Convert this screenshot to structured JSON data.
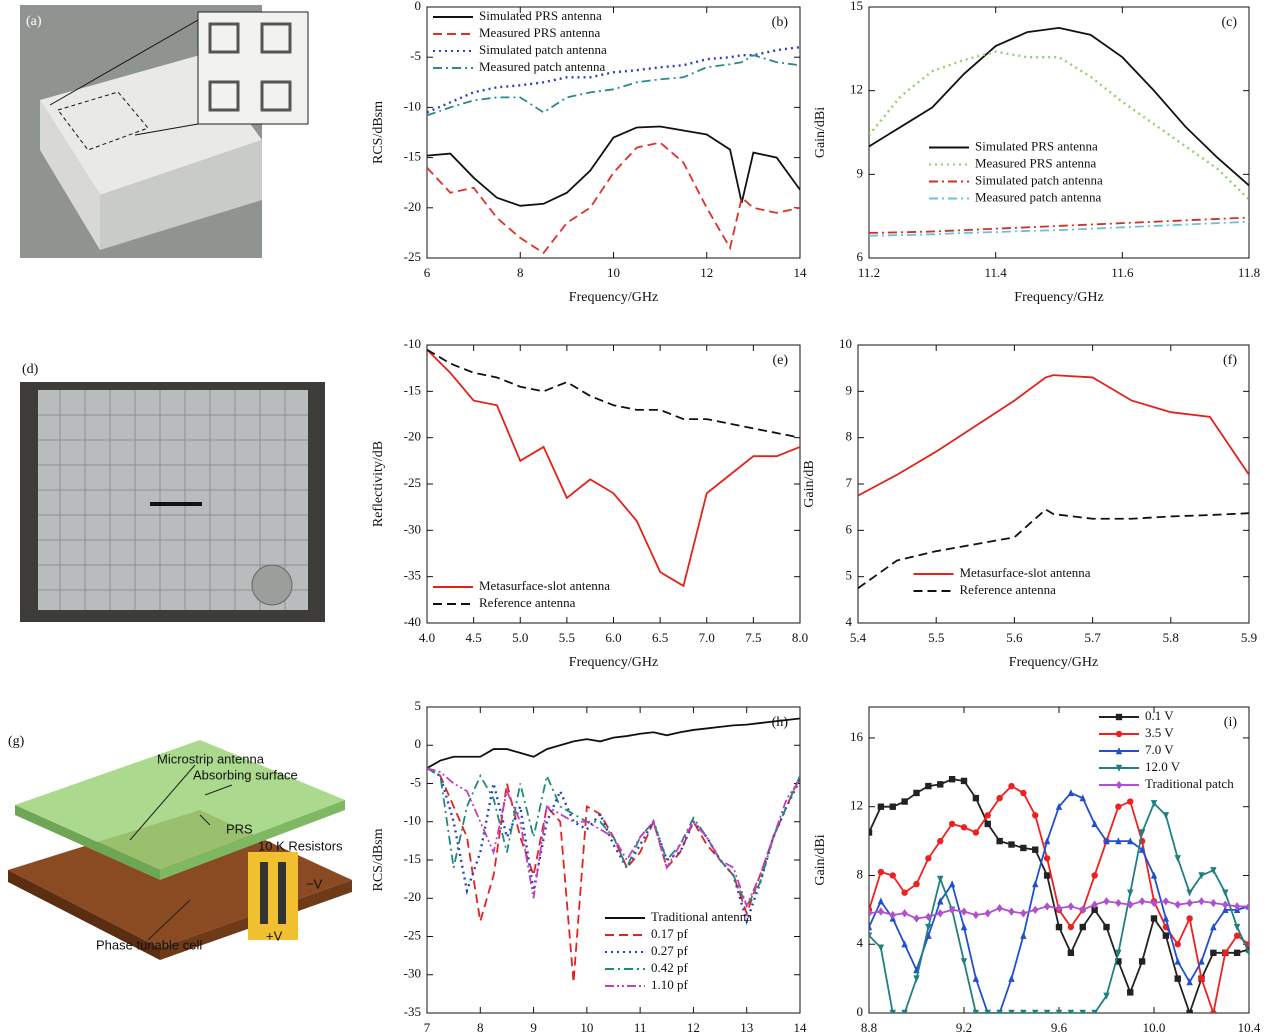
{
  "photos": [
    {
      "label": "(a)"
    },
    {
      "label": "(d)"
    }
  ],
  "diagram": {
    "label": "(g)",
    "annotations": [
      "Microstrip antenna",
      "Absorbing surface",
      "PRS",
      "10 K Resistors",
      "−V",
      "+V",
      "Phase tunable cell"
    ]
  },
  "chart_data": [
    {
      "type": "line",
      "panel_label": "(b)",
      "x_label": "Frequency/GHz",
      "y_label": "RCS/dBsm",
      "xlim": [
        6,
        14
      ],
      "xticks": [
        6,
        8,
        10,
        12,
        14
      ],
      "ylim": [
        -25,
        0
      ],
      "yticks": [
        -25,
        -20,
        -15,
        -10,
        -5,
        0
      ],
      "legend": "upper left",
      "x": [
        6,
        6.5,
        7,
        7.5,
        8,
        8.5,
        9,
        9.5,
        10,
        10.5,
        11,
        11.5,
        12,
        12.5,
        12.75,
        13,
        13.5,
        14
      ],
      "series": [
        {
          "name": "Simulated PRS antenna",
          "color": "#111111",
          "dash": "solid",
          "values": [
            -14.8,
            -14.6,
            -17,
            -19,
            -19.8,
            -19.6,
            -18.5,
            -16.3,
            -13,
            -12,
            -11.9,
            -12.3,
            -12.7,
            -14.2,
            -19.5,
            -14.5,
            -15,
            -18.2
          ]
        },
        {
          "name": "Measured PRS antenna",
          "color": "#e0302a",
          "dash": "dashed",
          "values": [
            -16,
            -18.5,
            -18,
            -21,
            -23,
            -24.5,
            -21.5,
            -20,
            -16.5,
            -14,
            -13.5,
            -15.5,
            -20,
            -24,
            -19,
            -20,
            -20.5,
            -20
          ]
        },
        {
          "name": "Simulated patch antenna",
          "color": "#2f3fbf",
          "dash": "dotted",
          "values": [
            -10.5,
            -9.5,
            -8.5,
            -8,
            -7.8,
            -7.5,
            -7,
            -7,
            -6.5,
            -6.3,
            -6,
            -5.8,
            -5.2,
            -5,
            -4.8,
            -4.8,
            -4.3,
            -4
          ]
        },
        {
          "name": "Measured patch antenna",
          "color": "#2a8a8a",
          "dash": "dashdot",
          "values": [
            -10.8,
            -10,
            -9.3,
            -9,
            -9,
            -10.5,
            -9,
            -8.5,
            -8.2,
            -7.5,
            -7.2,
            -7,
            -6,
            -5.7,
            -5.5,
            -4.8,
            -5.5,
            -5.8
          ]
        }
      ]
    },
    {
      "type": "line",
      "panel_label": "(c)",
      "x_label": "Frequency/GHz",
      "y_label": "Gain/dBi",
      "xlim": [
        11.2,
        11.8
      ],
      "xticks": [
        11.2,
        11.4,
        11.6,
        11.8
      ],
      "ylim": [
        6,
        15
      ],
      "yticks": [
        6,
        9,
        12,
        15
      ],
      "legend": "center",
      "x": [
        11.2,
        11.25,
        11.3,
        11.35,
        11.4,
        11.45,
        11.5,
        11.55,
        11.6,
        11.65,
        11.7,
        11.75,
        11.8
      ],
      "series": [
        {
          "name": "Simulated PRS antenna",
          "color": "#111111",
          "dash": "solid",
          "values": [
            10,
            10.7,
            11.4,
            12.6,
            13.6,
            14.1,
            14.25,
            14,
            13.2,
            12,
            10.7,
            9.6,
            8.6
          ]
        },
        {
          "name": "Measured PRS antenna",
          "color": "#8fd06a",
          "dash": "dotted",
          "values": [
            10.4,
            11.8,
            12.7,
            13.1,
            13.4,
            13.2,
            13.2,
            12.5,
            11.6,
            10.8,
            10,
            9.2,
            8.1
          ]
        },
        {
          "name": "Simulated patch antenna",
          "color": "#d03020",
          "dash": "dashdot",
          "values": [
            6.9,
            6.92,
            6.95,
            7,
            7.05,
            7.1,
            7.15,
            7.2,
            7.25,
            7.3,
            7.35,
            7.4,
            7.45
          ]
        },
        {
          "name": "Measured patch antenna",
          "color": "#6ac0d8",
          "dash": "dashdot",
          "values": [
            6.8,
            6.82,
            6.85,
            6.9,
            6.93,
            6.97,
            7,
            7.05,
            7.1,
            7.15,
            7.2,
            7.25,
            7.3
          ]
        }
      ]
    },
    {
      "type": "line",
      "panel_label": "(e)",
      "x_label": "Frequency/GHz",
      "y_label": "Reflectivity/dB",
      "xlim": [
        4,
        8
      ],
      "xticks": [
        {
          "value": 4,
          "label": "4.0"
        },
        4.5,
        {
          "value": 5,
          "label": "5.0"
        },
        5.5,
        {
          "value": 6,
          "label": "6.0"
        },
        6.5,
        {
          "value": 7,
          "label": "7.0"
        },
        7.5,
        {
          "value": 8,
          "label": "8.0"
        }
      ],
      "ylim": [
        -40,
        -10
      ],
      "yticks": [
        -40,
        -35,
        -30,
        -25,
        -20,
        -15,
        -10
      ],
      "legend": "lower left",
      "x": [
        4,
        4.25,
        4.5,
        4.75,
        5,
        5.25,
        5.5,
        5.75,
        6,
        6.25,
        6.5,
        6.75,
        7,
        7.25,
        7.5,
        7.75,
        8
      ],
      "series": [
        {
          "name": "Metasurface-slot antenna",
          "color": "#e3221b",
          "dash": "solid",
          "values": [
            -10.5,
            -13,
            -16,
            -16.5,
            -22.5,
            -21,
            -26.5,
            -24.5,
            -26,
            -29,
            -34.5,
            -36,
            -26,
            -24,
            -22,
            -22,
            -21
          ]
        },
        {
          "name": "Reference antenna",
          "color": "#111111",
          "dash": "dashed",
          "values": [
            -10.5,
            -12,
            -13,
            -13.5,
            -14.5,
            -15,
            -14,
            -15.5,
            -16.5,
            -17,
            -17,
            -18,
            -18,
            -18.5,
            -19,
            -19.5,
            -20
          ]
        }
      ]
    },
    {
      "type": "line",
      "panel_label": "(f)",
      "x_label": "Frequency/GHz",
      "y_label": "Gain/dB",
      "xlim": [
        5.4,
        5.9
      ],
      "xticks": [
        5.4,
        5.5,
        5.6,
        5.7,
        5.8,
        5.9
      ],
      "ylim": [
        4,
        10
      ],
      "yticks": [
        4,
        5,
        6,
        7,
        8,
        9,
        10
      ],
      "legend": "lower center",
      "x": [
        5.4,
        5.45,
        5.5,
        5.55,
        5.6,
        5.64,
        5.65,
        5.7,
        5.75,
        5.8,
        5.85,
        5.9
      ],
      "series": [
        {
          "name": "Metasurface-slot antenna",
          "color": "#e3221b",
          "dash": "solid",
          "values": [
            6.75,
            7.2,
            7.7,
            8.25,
            8.8,
            9.3,
            9.35,
            9.3,
            8.8,
            8.55,
            8.45,
            7.2
          ]
        },
        {
          "name": "Reference antenna",
          "color": "#111111",
          "dash": "dashed",
          "values": [
            4.75,
            5.35,
            5.55,
            5.7,
            5.85,
            6.45,
            6.35,
            6.25,
            6.25,
            6.3,
            6.33,
            6.37
          ]
        }
      ]
    },
    {
      "type": "line",
      "panel_label": "(h)",
      "x_label": "Frequency/GHz",
      "y_label": "RCS/dBsm",
      "xlim": [
        7,
        14
      ],
      "xticks": [
        7,
        8,
        9,
        10,
        11,
        12,
        13,
        14
      ],
      "ylim": [
        -35,
        5
      ],
      "yticks": [
        -35,
        -30,
        -25,
        -20,
        -15,
        -10,
        -5,
        0,
        5
      ],
      "legend": "lower right",
      "x": [
        7,
        7.25,
        7.5,
        7.75,
        8,
        8.25,
        8.5,
        8.75,
        9,
        9.25,
        9.5,
        9.75,
        10,
        10.25,
        10.5,
        10.75,
        11,
        11.25,
        11.5,
        11.75,
        12,
        12.25,
        12.5,
        12.75,
        13,
        13.25,
        13.5,
        13.75,
        14
      ],
      "series": [
        {
          "name": "Traditional antenna",
          "color": "#111111",
          "dash": "solid",
          "values": [
            -3,
            -2,
            -1.5,
            -1.5,
            -1.5,
            -0.5,
            -0.5,
            -1,
            -1.5,
            -0.5,
            0,
            0.5,
            0.8,
            0.5,
            1,
            1.2,
            1.5,
            1.7,
            1.3,
            1.7,
            2,
            2.2,
            2.4,
            2.6,
            2.7,
            2.9,
            3.1,
            3.3,
            3.5
          ]
        },
        {
          "name": "0.17 pf",
          "color": "#e52222",
          "dash": "dashed",
          "values": [
            -3,
            -4,
            -8,
            -12,
            -23,
            -17,
            -5,
            -12,
            -17,
            -8,
            -10,
            -31,
            -8,
            -9,
            -12,
            -16,
            -14,
            -10,
            -16,
            -14,
            -10,
            -13,
            -15,
            -17,
            -22,
            -17,
            -12,
            -8,
            -4
          ]
        },
        {
          "name": "0.27 pf",
          "color": "#2343c8",
          "dash": "dotted",
          "values": [
            -3,
            -4,
            -10,
            -19,
            -14,
            -5,
            -12,
            -8,
            -19,
            -10,
            -6,
            -10,
            -11,
            -9,
            -13,
            -16,
            -13,
            -10,
            -15,
            -14,
            -10,
            -12,
            -15,
            -17,
            -23,
            -18,
            -12,
            -8,
            -4.5
          ]
        },
        {
          "name": "0.42 pf",
          "color": "#1f8a7a",
          "dash": "dashdot",
          "values": [
            -3,
            -4,
            -16,
            -8,
            -4,
            -7,
            -14,
            -5,
            -12,
            -4,
            -8,
            -9,
            -10,
            -10,
            -12,
            -16,
            -12,
            -10,
            -15,
            -13,
            -9.5,
            -12,
            -15,
            -17,
            -21,
            -18,
            -12,
            -8,
            -4
          ]
        },
        {
          "name": "1.10 pf",
          "color": "#c040c0",
          "dash": "dashdotdot",
          "values": [
            -3,
            -3.5,
            -5,
            -6,
            -10,
            -14,
            -6,
            -10,
            -20,
            -8,
            -9,
            -10,
            -10,
            -11,
            -12,
            -15,
            -12,
            -10,
            -16,
            -13,
            -10,
            -12,
            -15,
            -16,
            -21,
            -17,
            -12,
            -7,
            -4.5
          ]
        }
      ]
    },
    {
      "type": "line",
      "panel_label": "(i)",
      "x_label": "Frequency/GHz",
      "y_label": "Gain/dBi",
      "xlim": [
        8.8,
        10.4
      ],
      "xticks": [
        8.8,
        9.2,
        9.6,
        {
          "value": 10,
          "label": "10.0"
        },
        10.4
      ],
      "ylim": [
        0,
        17.8
      ],
      "yticks": [
        0,
        4,
        8,
        12,
        16
      ],
      "legend": "upper right",
      "x": [
        8.8,
        8.85,
        8.9,
        8.95,
        9,
        9.05,
        9.1,
        9.15,
        9.2,
        9.25,
        9.3,
        9.35,
        9.4,
        9.45,
        9.5,
        9.55,
        9.6,
        9.65,
        9.7,
        9.75,
        9.8,
        9.85,
        9.9,
        9.95,
        10,
        10.05,
        10.1,
        10.15,
        10.2,
        10.25,
        10.3,
        10.35,
        10.4
      ],
      "series": [
        {
          "name": "0.1 V",
          "color": "#222222",
          "dash": "solid",
          "marker": "square",
          "values": [
            10.5,
            12,
            12,
            12.3,
            12.8,
            13.2,
            13.3,
            13.6,
            13.5,
            12.5,
            11,
            10,
            9.8,
            9.6,
            9.5,
            8,
            5,
            3.5,
            5,
            6,
            5,
            3,
            1.2,
            3,
            5.5,
            4.5,
            2,
            0,
            2,
            3.5,
            3.5,
            3.5,
            3.7
          ]
        },
        {
          "name": "3.5 V",
          "color": "#f02020",
          "dash": "solid",
          "marker": "circle",
          "values": [
            6,
            8.2,
            8,
            7,
            7.5,
            9,
            10,
            11,
            10.8,
            10.5,
            11.5,
            12.5,
            13.2,
            12.8,
            11.5,
            9,
            6,
            5,
            6,
            8,
            10,
            12,
            12.3,
            10,
            6.5,
            5,
            4,
            5.5,
            2,
            0,
            3.5,
            4.5,
            4
          ]
        },
        {
          "name": "7.0 V",
          "color": "#2050d0",
          "dash": "solid",
          "marker": "triangle-up",
          "values": [
            5,
            6.5,
            5.5,
            4,
            2.5,
            4.5,
            6.5,
            7.5,
            5,
            2,
            0,
            0,
            2,
            4.5,
            7.5,
            10,
            12,
            12.8,
            12.5,
            11,
            10,
            10,
            10,
            9.5,
            8,
            5.5,
            3,
            1.8,
            3,
            5,
            6,
            6,
            6.2
          ]
        },
        {
          "name": "12.0 V",
          "color": "#208080",
          "dash": "solid",
          "marker": "triangle-down",
          "values": [
            4.5,
            3.8,
            0,
            0,
            2,
            5,
            7.8,
            6,
            3,
            0,
            0,
            0,
            0,
            0,
            0,
            0,
            0,
            0,
            0,
            0,
            1,
            3.5,
            7,
            10.5,
            12.2,
            11.5,
            9,
            7,
            8,
            8.3,
            7,
            5,
            3.5
          ]
        },
        {
          "name": "Traditional patch",
          "color": "#b050d0",
          "dash": "solid",
          "marker": "diamond",
          "values": [
            5.8,
            5.9,
            5.7,
            5.8,
            5.5,
            5.6,
            5.8,
            6,
            5.9,
            5.7,
            5.8,
            6.1,
            5.9,
            5.8,
            6,
            6.2,
            6.1,
            6.2,
            6,
            6.3,
            6.5,
            6.4,
            6.3,
            6.5,
            6.4,
            6.5,
            6.3,
            6.4,
            6.5,
            6.4,
            6.3,
            6.2,
            6.2
          ]
        }
      ]
    }
  ]
}
